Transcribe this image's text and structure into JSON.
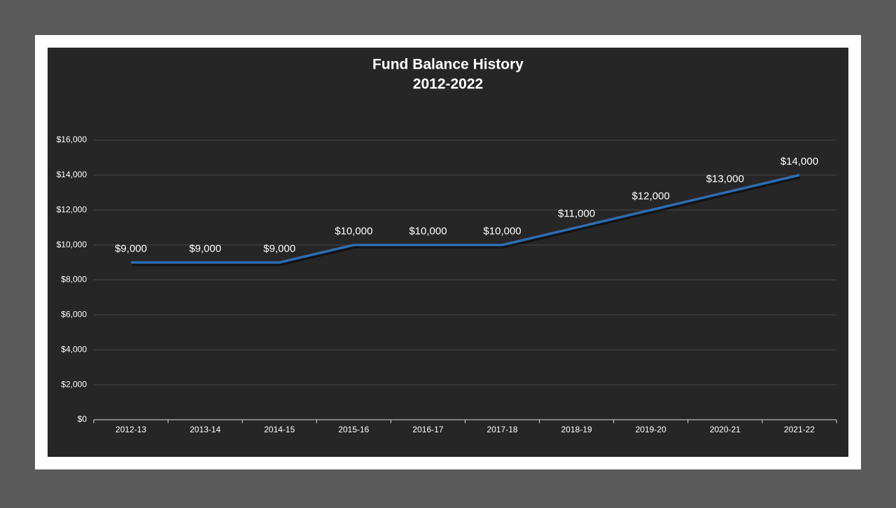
{
  "chart_data": {
    "type": "line",
    "title": "Fund Balance History",
    "subtitle": "2012-2022",
    "categories": [
      "2012-13",
      "2013-14",
      "2014-15",
      "2015-16",
      "2016-17",
      "2017-18",
      "2018-19",
      "2019-20",
      "2020-21",
      "2021-22"
    ],
    "series": [
      {
        "name": "Fund Balance",
        "color": "#2e6db4",
        "values": [
          9000,
          9000,
          9000,
          10000,
          10000,
          10000,
          11000,
          12000,
          13000,
          14000
        ],
        "value_labels": [
          "$9,000",
          "$9,000",
          "$9,000",
          "$10,000",
          "$10,000",
          "$10,000",
          "$11,000",
          "$12,000",
          "$13,000",
          "$14,000"
        ]
      }
    ],
    "ylim": [
      0,
      16000
    ],
    "yticks": [
      {
        "value": 0,
        "label": "$0"
      },
      {
        "value": 2000,
        "label": "$2,000"
      },
      {
        "value": 4000,
        "label": "$4,000"
      },
      {
        "value": 6000,
        "label": "$6,000"
      },
      {
        "value": 8000,
        "label": "$8,000"
      },
      {
        "value": 10000,
        "label": "$10,000"
      },
      {
        "value": 12000,
        "label": "$12,000"
      },
      {
        "value": 14000,
        "label": "$14,000"
      },
      {
        "value": 16000,
        "label": "$16,000"
      }
    ],
    "grid": true
  }
}
